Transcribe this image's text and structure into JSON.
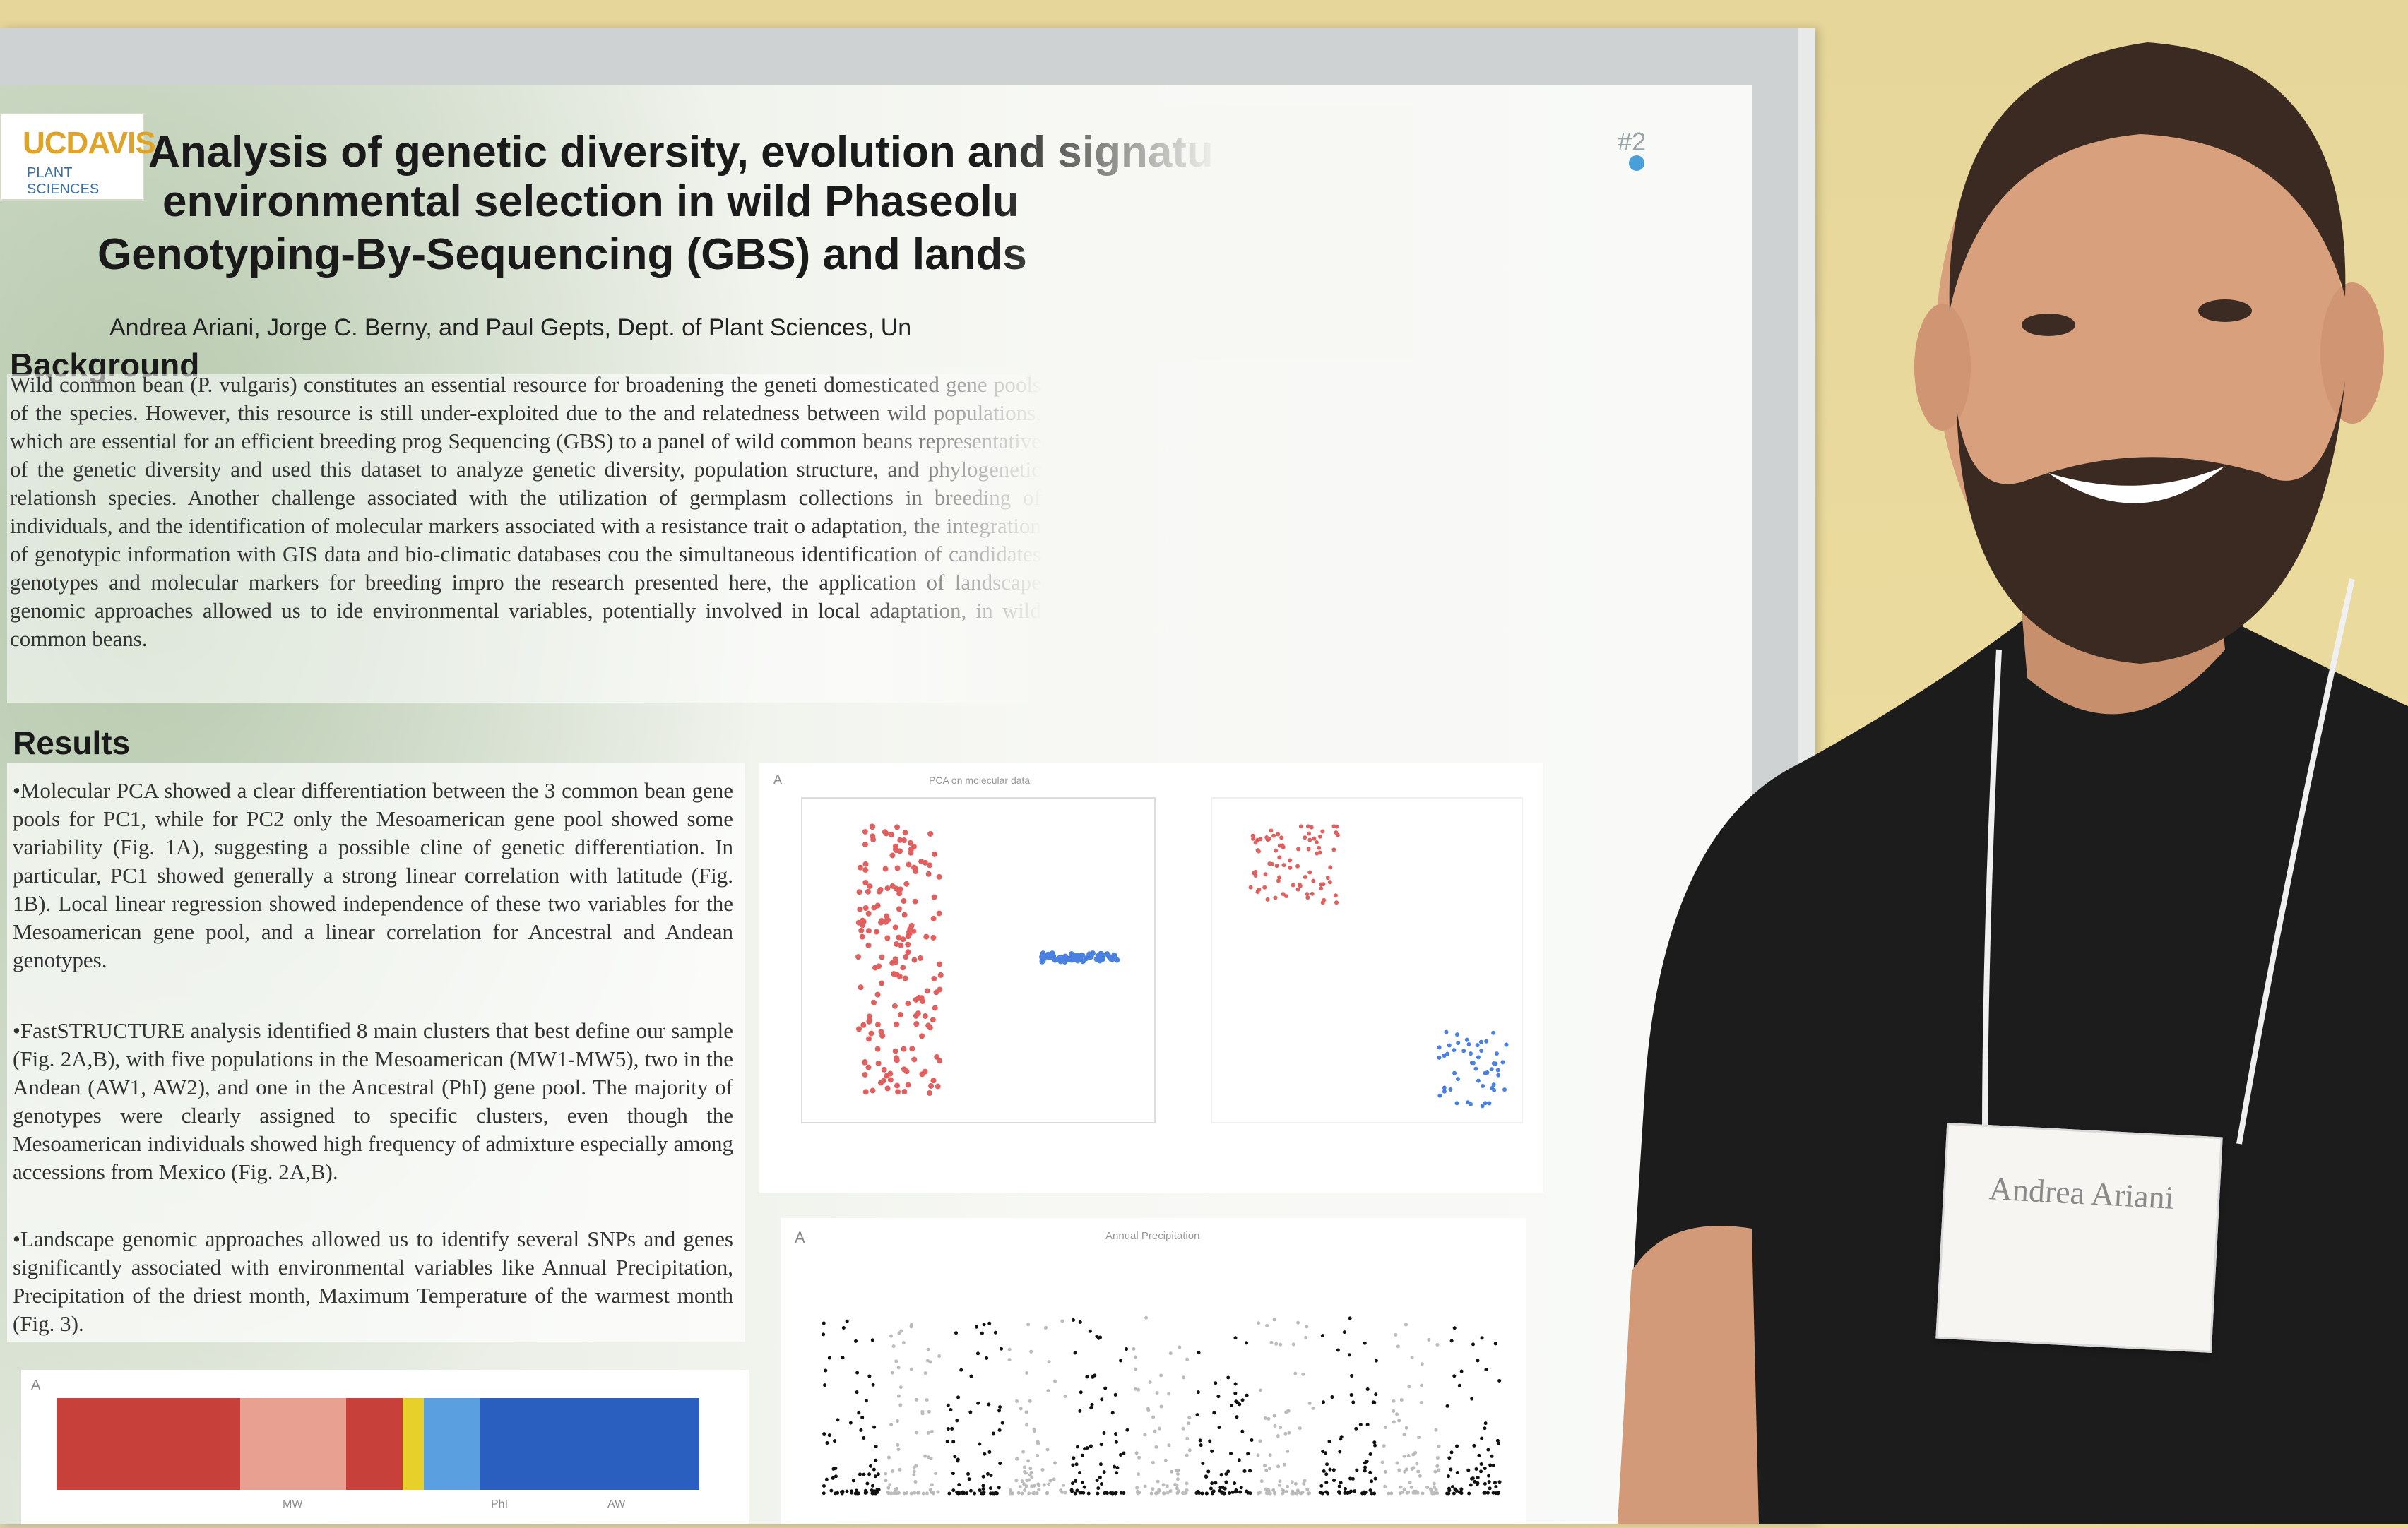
{
  "poster": {
    "number": "#2",
    "logo": {
      "main": "UCDAVIS",
      "sub": "PLANT SCIENCES"
    },
    "title_lines": [
      "Analysis of genetic diversity, evolution and signatu",
      "environmental selection in wild Phaseolu",
      "Genotyping-By-Sequencing (GBS) and lands"
    ],
    "authors": "Andrea Ariani, Jorge C. Berny, and Paul Gepts, Dept. of Plant Sciences, Un",
    "background": {
      "heading": "Background",
      "text": "Wild common bean (P. vulgaris) constitutes an essential resource for broadening the geneti domesticated gene pools of the species. However, this resource is still under-exploited due to the and relatedness between wild populations, which are essential for an efficient breeding prog Sequencing (GBS) to a panel of wild common beans representative of the genetic diversity and used this dataset to analyze genetic diversity, population structure, and phylogenetic relationsh species. Another challenge associated with the utilization of germplasm collections in breeding of individuals, and the identification of molecular markers associated with a resistance trait o adaptation, the integration of genotypic information with GIS data and bio-climatic databases cou the simultaneous identification of candidates genotypes and molecular markers for breeding impro the research presented here, the application of landscape genomic approaches allowed us to ide environmental variables, potentially involved in local adaptation, in wild common beans."
    },
    "results": {
      "heading": "Results",
      "bullets": [
        "•Molecular PCA showed a clear differentiation between the 3 common bean gene pools for PC1, while for PC2 only the Mesoamerican gene pool showed some variability (Fig. 1A), suggesting a possible cline of genetic differentiation. In particular, PC1 showed generally a strong linear correlation with latitude (Fig. 1B). Local linear regression showed independence of these two variables for the Mesoamerican gene pool, and a linear correlation for Ancestral and Andean genotypes.",
        "•FastSTRUCTURE analysis identified 8 main clusters that best define our sample (Fig. 2A,B), with five populations in the Mesoamerican (MW1-MW5), two in the Andean (AW1, AW2), and one in the Ancestral (PhI) gene pool. The majority of genotypes were clearly assigned to specific clusters, even though the Mesoamerican individuals showed high frequency of admixture especially among accessions from Mexico (Fig. 2A,B).",
        "•Landscape genomic approaches allowed us to identify several SNPs and genes significantly associated with environmental variables like Annual Precipitation, Precipitation of the driest month, Maximum Temperature of the warmest month (Fig. 3)."
      ]
    },
    "figures": {
      "fig1_title": "PCA on molecular data",
      "fig1_panel": "A",
      "fig2_title": "Annual Precipitation",
      "fig2_panel": "A",
      "fig3_panel": "A",
      "fig3_labels": [
        "MW",
        "PhI",
        "AW"
      ],
      "fig3_colors": [
        "#c8403a",
        "#e8a090",
        "#e8d02a",
        "#5a9fe0",
        "#2a5fc0"
      ]
    }
  },
  "badge": {
    "name": "Andrea Ariani"
  },
  "colors": {
    "wall": "#ecdc9e",
    "shirt": "#1c1c1c",
    "skin": "#d9a07e",
    "beard": "#3a2a22"
  }
}
